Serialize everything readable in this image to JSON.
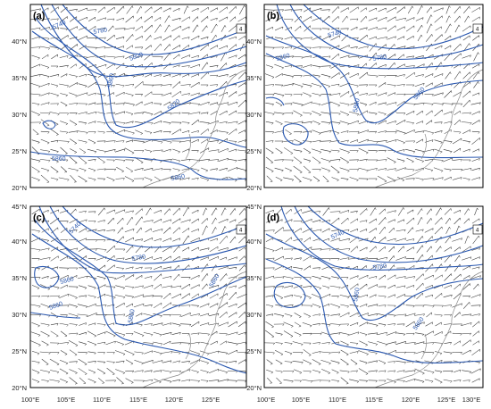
{
  "figure": {
    "y_ticks": [
      "20°N",
      "25°N",
      "30°N",
      "35°N",
      "40°N",
      "45°N"
    ],
    "x_ticks_left": [
      "100°E",
      "105°E",
      "110°E",
      "115°E",
      "120°E",
      "125°E"
    ],
    "x_ticks_right": [
      "100°E",
      "105°E",
      "110°E",
      "115°E",
      "120°E",
      "125°E",
      "130°E"
    ],
    "x_range": [
      100,
      130
    ],
    "y_range": [
      20,
      45
    ],
    "panels": [
      {
        "label": "(a)",
        "key": "4",
        "contour_labels": [
          "5740",
          "5780",
          "5800",
          "5820",
          "5860",
          "5860",
          "5860"
        ]
      },
      {
        "label": "(b)",
        "key": "4",
        "contour_labels": [
          "5740",
          "5780",
          "5860",
          "5860",
          "5860"
        ]
      },
      {
        "label": "(c)",
        "key": "4",
        "contour_labels": [
          "5740",
          "5780",
          "5860",
          "5860",
          "5860",
          "5860"
        ]
      },
      {
        "label": "(d)",
        "key": "4",
        "contour_labels": [
          "5740",
          "5780",
          "5860",
          "5860"
        ]
      }
    ],
    "colors": {
      "contour": "#2a58b0",
      "wind": "#333333",
      "coast": "#8a8a8a",
      "frame": "#000000"
    }
  }
}
